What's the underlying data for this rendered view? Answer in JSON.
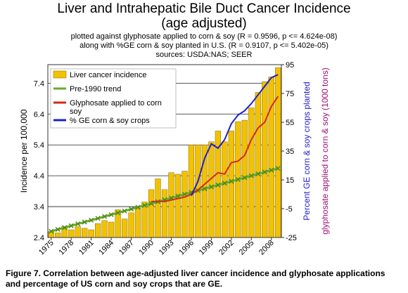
{
  "chart_data": {
    "type": "bar",
    "title": "Liver and Intrahepatic Bile Duct Cancer Incidence",
    "title_line2": "(age adjusted)",
    "subtitles": [
      "plotted against glyphosate applied to corn & soy  (R = 0.9596, p <= 4.624e-08)",
      "along with %GE corn & soy planted in U.S. (R = 0.9107, p <= 5.402e-05)",
      "sources: USDA:NAS; SEER"
    ],
    "ylabel": "Incidence per 100,000",
    "y2label_a": "Percent GE corn & soy crops planted",
    "y2label_b": "glyphosate applied to corn & soy (1000 tons)",
    "ylim": [
      2.4,
      8.0
    ],
    "y2lim": [
      -25,
      95
    ],
    "yticks": [
      "7.4",
      "6.4",
      "5.4",
      "4.4",
      "3.4",
      "2.4"
    ],
    "y2ticks": [
      "95",
      "75",
      "55",
      "35",
      "15",
      "-5",
      "-25"
    ],
    "xticks": [
      "1975",
      "1978",
      "1981",
      "1984",
      "1987",
      "1990",
      "1993",
      "1996",
      "1999",
      "2002",
      "2005",
      "2008"
    ],
    "grid": true,
    "legend_position": "top-left",
    "legend": [
      {
        "label": "Liver cancer incidence",
        "color": "#f2c200",
        "kind": "bar"
      },
      {
        "label": "Pre-1990 trend",
        "color": "#6aaa2a",
        "kind": "line"
      },
      {
        "label": "Glyphosate applied to corn",
        "label2": "soy",
        "color": "#d42a10",
        "kind": "line"
      },
      {
        "label": "% GE corn & soy crops",
        "color": "#2020cc",
        "kind": "line"
      }
    ],
    "years": [
      1975,
      1976,
      1977,
      1978,
      1979,
      1980,
      1981,
      1982,
      1983,
      1984,
      1985,
      1986,
      1987,
      1988,
      1989,
      1990,
      1991,
      1992,
      1993,
      1994,
      1995,
      1996,
      1997,
      1998,
      1999,
      2000,
      2001,
      2002,
      2003,
      2004,
      2005,
      2006,
      2007,
      2008,
      2009
    ],
    "series": [
      {
        "name": "Liver cancer incidence",
        "axis": "left",
        "values": [
          2.6,
          2.55,
          2.75,
          2.65,
          2.75,
          2.7,
          2.65,
          2.85,
          2.95,
          2.9,
          3.3,
          3.0,
          3.2,
          3.35,
          3.55,
          3.95,
          4.3,
          3.95,
          4.5,
          4.45,
          4.55,
          5.4,
          5.4,
          5.4,
          5.5,
          5.85,
          5.5,
          5.85,
          6.15,
          6.2,
          6.6,
          7.1,
          7.45,
          7.6,
          7.9
        ]
      },
      {
        "name": "Pre-1990 trend",
        "axis": "left",
        "values": [
          2.6,
          2.66,
          2.72,
          2.78,
          2.84,
          2.9,
          2.96,
          3.02,
          3.08,
          3.14,
          3.2,
          3.26,
          3.32,
          3.38,
          3.44,
          3.5,
          3.56,
          3.62,
          3.68,
          3.74,
          3.8,
          3.86,
          3.92,
          3.98,
          4.04,
          4.1,
          4.16,
          4.22,
          4.28,
          4.34,
          4.4,
          4.46,
          4.52,
          4.58,
          4.64
        ]
      },
      {
        "name": "Glyphosate applied to corn & soy",
        "axis": "right",
        "x": [
          1990,
          1991,
          1992,
          1993,
          1994,
          1995,
          1996,
          1997,
          1998,
          1999,
          2000,
          2001,
          2002,
          2003,
          2004,
          2005,
          2006,
          2007,
          2008,
          2009
        ],
        "values": [
          0,
          0,
          0,
          1,
          2,
          3,
          5,
          8,
          12,
          16,
          20,
          19,
          27,
          28,
          32,
          43,
          51,
          55,
          66,
          73
        ]
      },
      {
        "name": "% GE corn & soy crops",
        "axis": "right",
        "x": [
          1996,
          1997,
          1998,
          1999,
          2000,
          2001,
          2002,
          2003,
          2004,
          2005,
          2006,
          2007,
          2008,
          2009
        ],
        "values": [
          4,
          14,
          30,
          40,
          37,
          43,
          54,
          60,
          63,
          68,
          74,
          80,
          86,
          88
        ]
      }
    ]
  },
  "caption": [
    "Figure 7. Correlation between age-adjusted liver cancer incidence and glyphosate applications",
    "and percentage of US corn and soy crops that are GE."
  ]
}
